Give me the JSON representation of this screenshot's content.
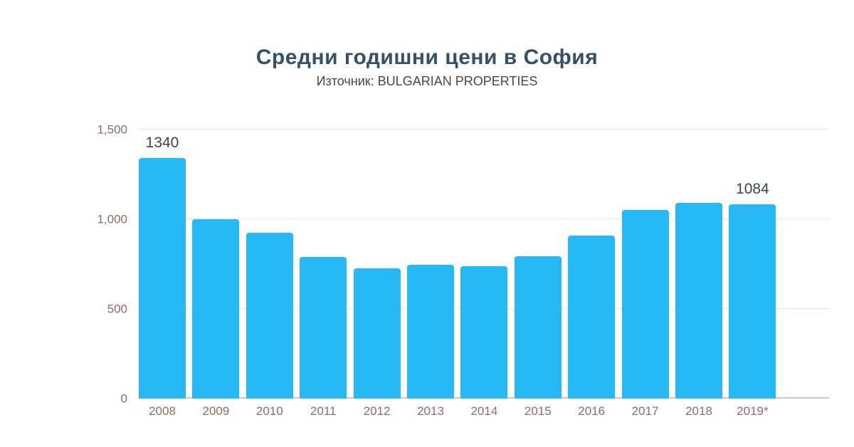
{
  "header": {
    "title": "Средни годишни цени в София",
    "subtitle": "Източник: BULGARIAN PROPERTIES"
  },
  "chart_data": {
    "type": "bar",
    "title": "Средни годишни цени в София",
    "subtitle": "Източник: BULGARIAN PROPERTIES",
    "categories": [
      "2008",
      "2009",
      "2010",
      "2011",
      "2012",
      "2013",
      "2014",
      "2015",
      "2016",
      "2017",
      "2018",
      "2019*"
    ],
    "values": [
      1340,
      1000,
      925,
      790,
      725,
      745,
      740,
      795,
      910,
      1050,
      1090,
      1084
    ],
    "bar_labels": [
      "1340",
      "",
      "",
      "",
      "",
      "",
      "",
      "",
      "",
      "",
      "",
      "1084"
    ],
    "xlabel": "",
    "ylabel": "",
    "ylim": [
      0,
      1500
    ],
    "yticks": [
      0,
      500,
      1000,
      1500
    ],
    "ytick_labels": [
      "0",
      "500",
      "1,000",
      "1,500"
    ],
    "grid": true,
    "legend": false,
    "colors": {
      "bar": "#27b9f5",
      "value_label": "#37474f",
      "axis_tick_label": "#8d6e63",
      "title": "#35506b",
      "gridline": "#e4e4e4",
      "baseline": "#c9c9c9"
    }
  }
}
